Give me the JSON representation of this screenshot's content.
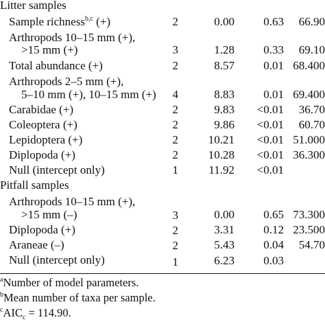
{
  "sections": {
    "litter": "Litter samples",
    "pitfall": "Pitfall samples"
  },
  "rows": [
    {
      "label": "Sample richness",
      "label_sup": "b,c",
      "label_suffix": " (+)",
      "k": "2",
      "delta": "0.00",
      "weight": "0.63",
      "pct": "66.90"
    },
    {
      "label": "Arthropods 10–15 mm (+),",
      "label2": ">15 mm (+)",
      "k": "3",
      "delta": "1.28",
      "weight": "0.33",
      "pct": "69.10"
    },
    {
      "label": "Total abundance (+)",
      "k": "2",
      "delta": "8.57",
      "weight": "0.01",
      "pct": "68.400"
    },
    {
      "label": "Arthropods 2–5 mm (+),",
      "label2": "5–10 mm (+), 10–15 mm (+)",
      "k": "4",
      "delta": "8.83",
      "weight": "0.01",
      "pct": "69.400"
    },
    {
      "label": "Carabidae (+)",
      "k": "2",
      "delta": "9.83",
      "weight": "<0.01",
      "pct": "36.70"
    },
    {
      "label": "Coleoptera (+)",
      "k": "2",
      "delta": "9.86",
      "weight": "<0.01",
      "pct": "60.70"
    },
    {
      "label": "Lepidoptera (+)",
      "k": "2",
      "delta": "10.21",
      "weight": "<0.01",
      "pct": "51.000"
    },
    {
      "label": "Diplopoda (+)",
      "k": "2",
      "delta": "10.28",
      "weight": "<0.01",
      "pct": "36.300"
    },
    {
      "label": "Null (intercept only)",
      "k": "1",
      "delta": "11.92",
      "weight": "<0.01",
      "pct": ""
    },
    {
      "label": "Arthropods 10–15 mm (+),",
      "label2": ">15 mm (–)",
      "k": "3",
      "delta": "0.00",
      "weight": "0.65",
      "pct": "73.300"
    },
    {
      "label": "Diplopoda (+)",
      "k": "2",
      "delta": "3.31",
      "weight": "0.12",
      "pct": "23.500"
    },
    {
      "label": "Araneae (–)",
      "k": "2",
      "delta": "5.43",
      "weight": "0.04",
      "pct": "54.70"
    },
    {
      "label": "Null (intercept only)",
      "k": "1",
      "delta": "6.23",
      "weight": "0.03",
      "pct": ""
    }
  ],
  "footnotes": {
    "a_mark": "a",
    "a_text": "Number of model parameters.",
    "b_mark": "b",
    "b_text": "Mean number of taxa per sample.",
    "c_mark": "c",
    "c_text_pre": "AIC",
    "c_sub": "c",
    "c_text_post": " = 114.90."
  }
}
